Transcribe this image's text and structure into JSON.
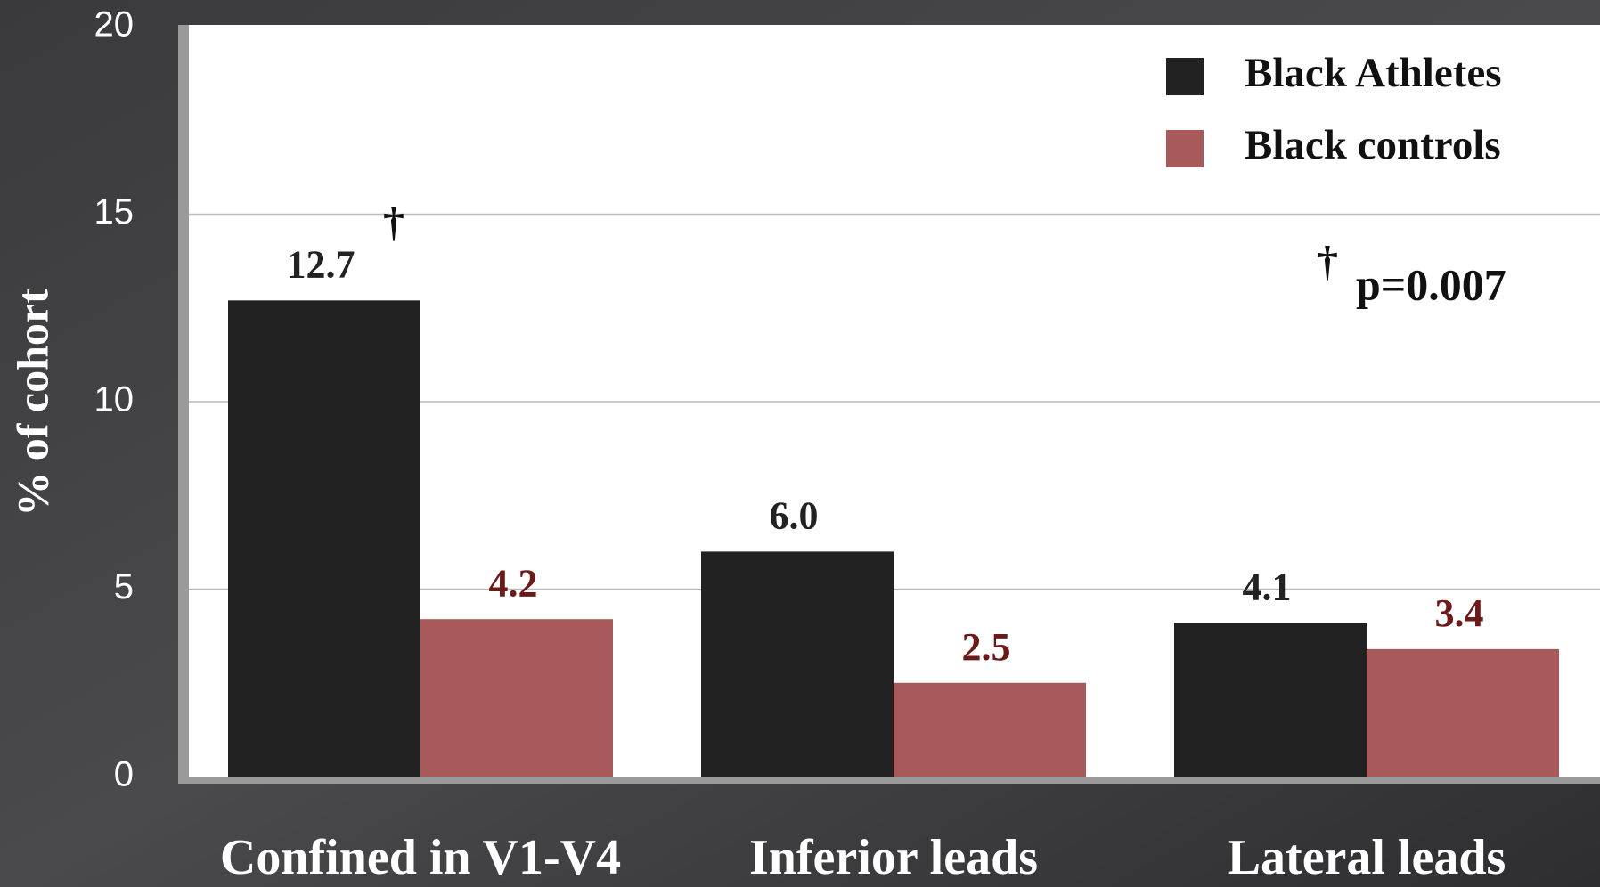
{
  "chart_data": {
    "type": "bar",
    "y_label": "% of cohort",
    "categories": [
      "Confined in V1-V4",
      "Inferior leads",
      "Lateral leads"
    ],
    "series": [
      {
        "name": "Black Athletes",
        "color": "#222222",
        "label_color": "#222222",
        "values": [
          12.7,
          6.0,
          4.1
        ],
        "value_labels": [
          "12.7",
          "6.0",
          "4.1"
        ]
      },
      {
        "name": "Black controls",
        "color": "#a85a5a",
        "label_color": "#6b1a1a",
        "values": [
          4.2,
          2.5,
          3.4
        ],
        "value_labels": [
          "4.2",
          "2.5",
          "3.4"
        ]
      }
    ],
    "annotations": [
      "†",
      "†",
      "p=0.007"
    ],
    "ylim": [
      0,
      20
    ],
    "yticks": [
      0,
      5,
      10,
      15,
      20
    ],
    "grid": true,
    "legend": "top-right"
  }
}
